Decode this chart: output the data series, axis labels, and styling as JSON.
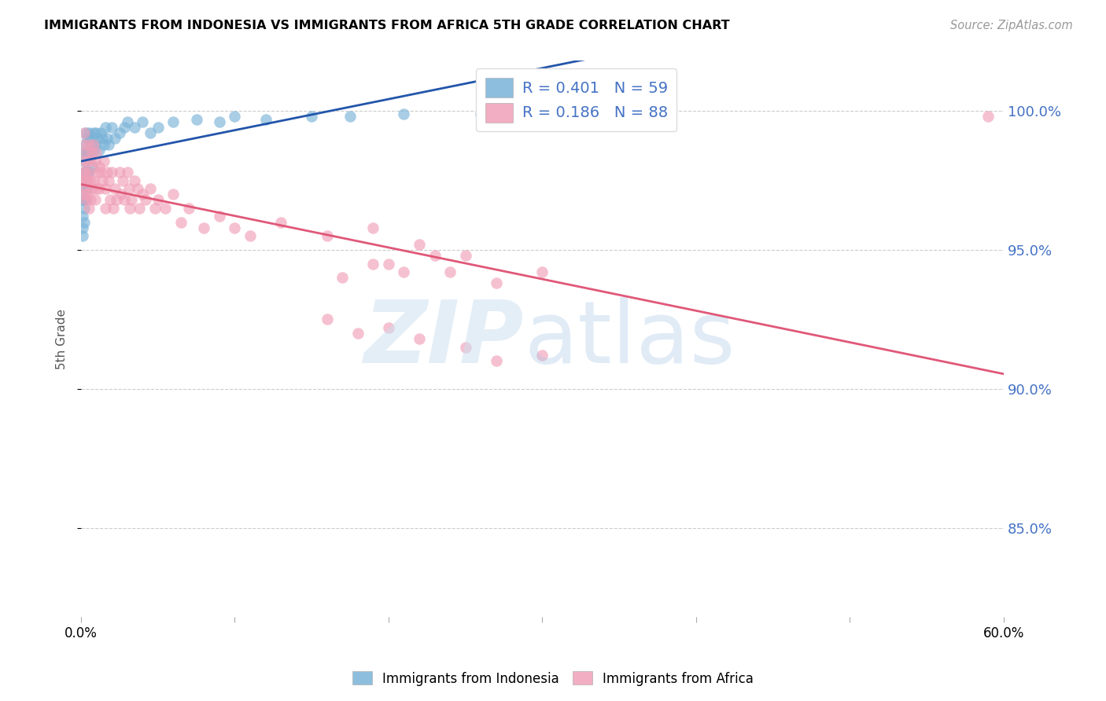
{
  "title": "IMMIGRANTS FROM INDONESIA VS IMMIGRANTS FROM AFRICA 5TH GRADE CORRELATION CHART",
  "source": "Source: ZipAtlas.com",
  "ylabel": "5th Grade",
  "ytick_labels": [
    "100.0%",
    "95.0%",
    "90.0%",
    "85.0%"
  ],
  "ytick_values": [
    1.0,
    0.95,
    0.9,
    0.85
  ],
  "xlim": [
    0.0,
    0.6
  ],
  "ylim": [
    0.818,
    1.018
  ],
  "blue_color": "#7ab3d8",
  "pink_color": "#f0a0b8",
  "blue_line_color": "#2255aa",
  "pink_line_color": "#e05878",
  "legend_blue_R": "0.401",
  "legend_blue_N": "59",
  "legend_pink_R": "0.186",
  "legend_pink_N": "88",
  "legend_label_blue": "Immigrants from Indonesia",
  "legend_label_pink": "Immigrants from Africa",
  "blue_scatter_x": [
    0.001,
    0.001,
    0.001,
    0.001,
    0.001,
    0.002,
    0.002,
    0.002,
    0.002,
    0.002,
    0.002,
    0.002,
    0.003,
    0.003,
    0.003,
    0.003,
    0.003,
    0.003,
    0.004,
    0.004,
    0.004,
    0.004,
    0.005,
    0.005,
    0.005,
    0.006,
    0.006,
    0.007,
    0.007,
    0.008,
    0.008,
    0.009,
    0.01,
    0.011,
    0.012,
    0.013,
    0.014,
    0.015,
    0.016,
    0.017,
    0.018,
    0.02,
    0.022,
    0.025,
    0.028,
    0.03,
    0.035,
    0.04,
    0.045,
    0.05,
    0.06,
    0.075,
    0.09,
    0.1,
    0.12,
    0.15,
    0.175,
    0.21,
    0.26
  ],
  "blue_scatter_y": [
    0.962,
    0.968,
    0.955,
    0.972,
    0.958,
    0.975,
    0.968,
    0.982,
    0.96,
    0.978,
    0.985,
    0.965,
    0.985,
    0.992,
    0.978,
    0.988,
    0.972,
    0.968,
    0.99,
    0.985,
    0.978,
    0.972,
    0.992,
    0.986,
    0.978,
    0.99,
    0.984,
    0.988,
    0.98,
    0.992,
    0.986,
    0.988,
    0.992,
    0.99,
    0.986,
    0.992,
    0.99,
    0.988,
    0.994,
    0.99,
    0.988,
    0.994,
    0.99,
    0.992,
    0.994,
    0.996,
    0.994,
    0.996,
    0.992,
    0.994,
    0.996,
    0.997,
    0.996,
    0.998,
    0.997,
    0.998,
    0.998,
    0.999,
    0.999
  ],
  "pink_scatter_x": [
    0.001,
    0.001,
    0.002,
    0.002,
    0.002,
    0.002,
    0.003,
    0.003,
    0.003,
    0.003,
    0.003,
    0.004,
    0.004,
    0.004,
    0.005,
    0.005,
    0.005,
    0.006,
    0.006,
    0.006,
    0.007,
    0.007,
    0.008,
    0.008,
    0.009,
    0.009,
    0.01,
    0.01,
    0.011,
    0.012,
    0.012,
    0.013,
    0.014,
    0.015,
    0.016,
    0.016,
    0.017,
    0.018,
    0.019,
    0.02,
    0.021,
    0.022,
    0.023,
    0.025,
    0.026,
    0.027,
    0.028,
    0.03,
    0.031,
    0.032,
    0.033,
    0.035,
    0.037,
    0.038,
    0.04,
    0.042,
    0.045,
    0.048,
    0.05,
    0.055,
    0.06,
    0.065,
    0.07,
    0.08,
    0.09,
    0.1,
    0.11,
    0.13,
    0.16,
    0.19,
    0.22,
    0.25,
    0.19,
    0.21,
    0.23,
    0.17,
    0.2,
    0.24,
    0.27,
    0.3,
    0.16,
    0.18,
    0.2,
    0.22,
    0.25,
    0.27,
    0.3,
    0.59
  ],
  "pink_scatter_y": [
    0.982,
    0.975,
    0.988,
    0.978,
    0.97,
    0.992,
    0.985,
    0.978,
    0.975,
    0.972,
    0.968,
    0.982,
    0.975,
    0.97,
    0.988,
    0.978,
    0.965,
    0.982,
    0.975,
    0.968,
    0.985,
    0.972,
    0.988,
    0.975,
    0.982,
    0.968,
    0.985,
    0.972,
    0.978,
    0.98,
    0.972,
    0.978,
    0.975,
    0.982,
    0.972,
    0.965,
    0.978,
    0.975,
    0.968,
    0.978,
    0.965,
    0.972,
    0.968,
    0.978,
    0.97,
    0.975,
    0.968,
    0.978,
    0.972,
    0.965,
    0.968,
    0.975,
    0.972,
    0.965,
    0.97,
    0.968,
    0.972,
    0.965,
    0.968,
    0.965,
    0.97,
    0.96,
    0.965,
    0.958,
    0.962,
    0.958,
    0.955,
    0.96,
    0.955,
    0.958,
    0.952,
    0.948,
    0.945,
    0.942,
    0.948,
    0.94,
    0.945,
    0.942,
    0.938,
    0.942,
    0.925,
    0.92,
    0.922,
    0.918,
    0.915,
    0.91,
    0.912,
    0.998
  ],
  "xtick_positions": [
    0.0,
    0.1,
    0.2,
    0.3,
    0.4,
    0.5,
    0.6
  ],
  "xtick_show_labels": [
    true,
    false,
    false,
    false,
    false,
    false,
    true
  ],
  "xtick_label_left": "0.0%",
  "xtick_label_right": "60.0%"
}
